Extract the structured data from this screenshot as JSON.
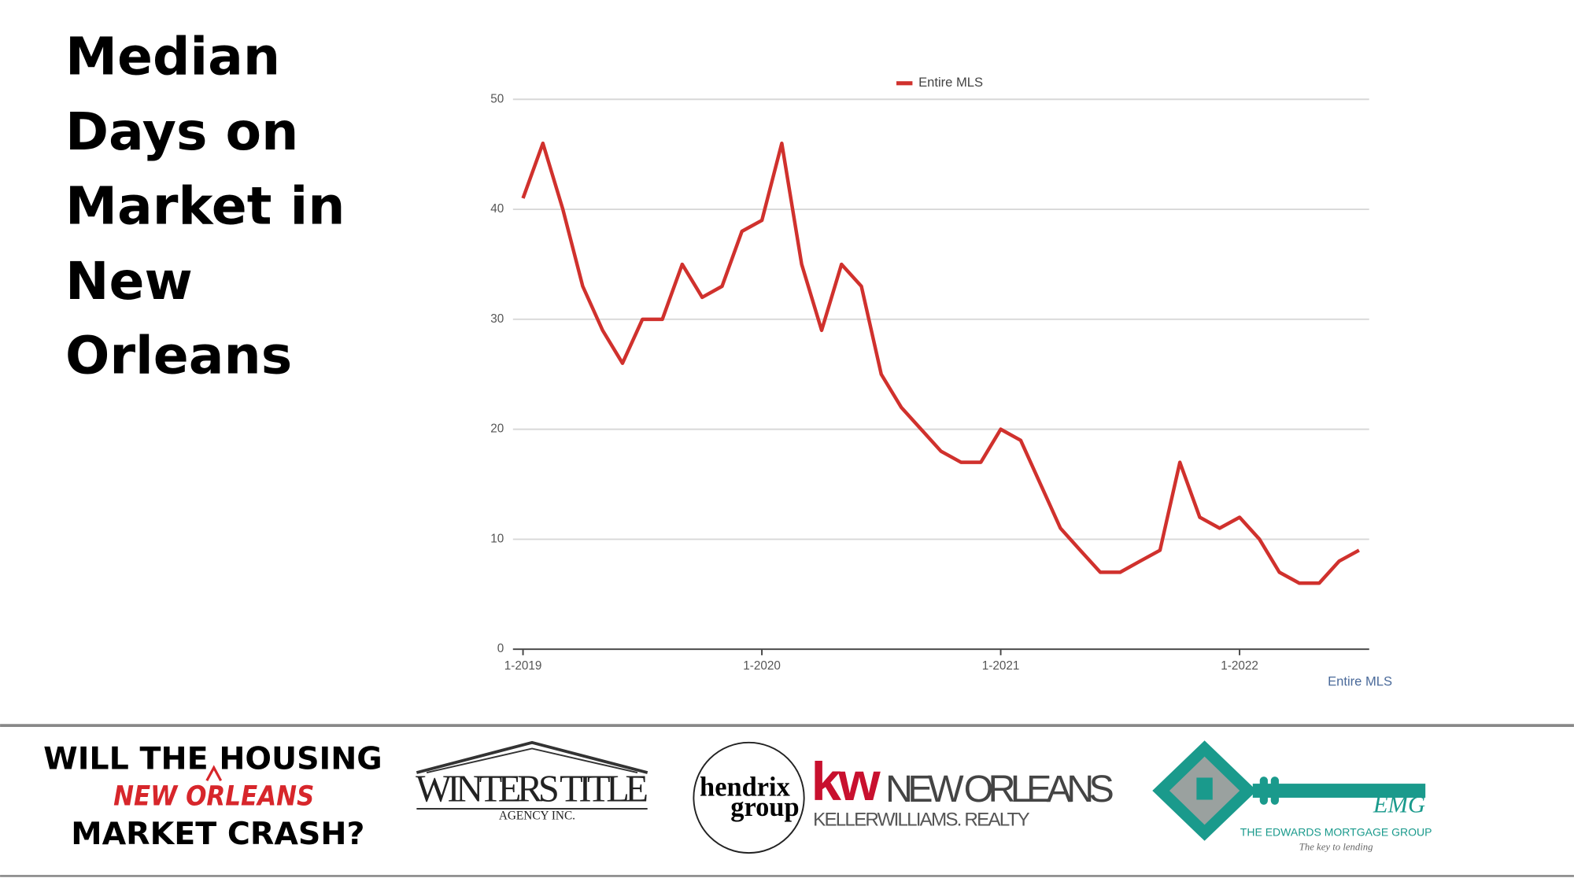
{
  "heading": "Median Days on Market in New Orleans",
  "chart_data": {
    "type": "line",
    "categories": [
      "1-2019",
      null,
      null,
      null,
      null,
      null,
      null,
      null,
      null,
      null,
      null,
      null,
      "1-2020",
      null,
      null,
      null,
      null,
      null,
      null,
      null,
      null,
      null,
      null,
      null,
      "1-2021",
      null,
      null,
      null,
      null,
      null,
      null,
      null,
      null,
      null,
      null,
      null,
      "1-2022",
      null,
      null,
      null,
      null,
      null,
      null
    ],
    "series": [
      {
        "name": "Entire MLS",
        "color": "#d0312d",
        "values": [
          41,
          46,
          40,
          33,
          29,
          26,
          30,
          30,
          35,
          32,
          33,
          38,
          39,
          46,
          35,
          29,
          35,
          33,
          25,
          22,
          20,
          18,
          17,
          17,
          20,
          19,
          15,
          11,
          9,
          7,
          7,
          8,
          9,
          17,
          12,
          11,
          12,
          10,
          7,
          6,
          6,
          8,
          9
        ]
      }
    ],
    "xlabel": "Entire MLS",
    "ylim": [
      0,
      50
    ],
    "yticks": [
      0,
      10,
      20,
      30,
      40,
      50
    ],
    "grid": true,
    "legend": "top"
  },
  "footer": {
    "crash_top": "WILL THE HOUSING",
    "crash_insert": "NEW ORLEANS",
    "crash_bottom": "MARKET CRASH?",
    "winters": "WINTERS TITLE",
    "winters_sub": "AGENCY INC.",
    "hendrix": "hendrix",
    "hendrix_group": "group",
    "kw": "kw",
    "kw_city": "NEW ORLEANS",
    "kw_name": "KELLERWILLIAMS. REALTY",
    "emg": "EMG",
    "emg_name": "THE EDWARDS MORTGAGE GROUP",
    "emg_tagline": "The key to lending"
  }
}
